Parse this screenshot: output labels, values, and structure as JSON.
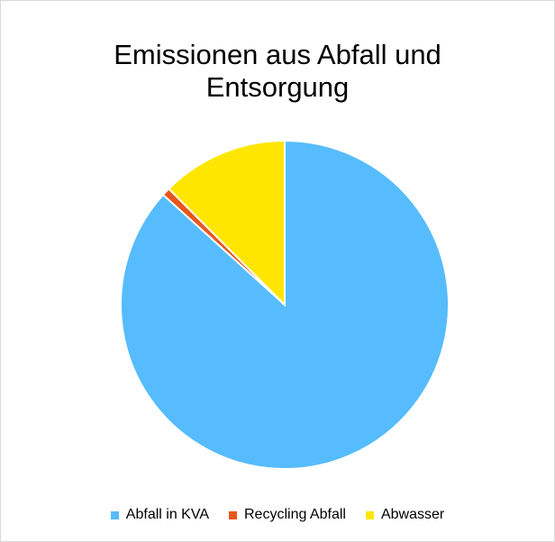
{
  "chart_data": {
    "type": "pie",
    "title": "Emissionen aus Abfall und Entsorgung",
    "categories": [
      "Abfall in KVA",
      "Recycling Abfall",
      "Abwasser"
    ],
    "values": [
      86.7,
      0.8,
      12.5
    ],
    "colors": [
      "#56bcfd",
      "#e8561c",
      "#ffe600"
    ],
    "legend": "bottom"
  }
}
